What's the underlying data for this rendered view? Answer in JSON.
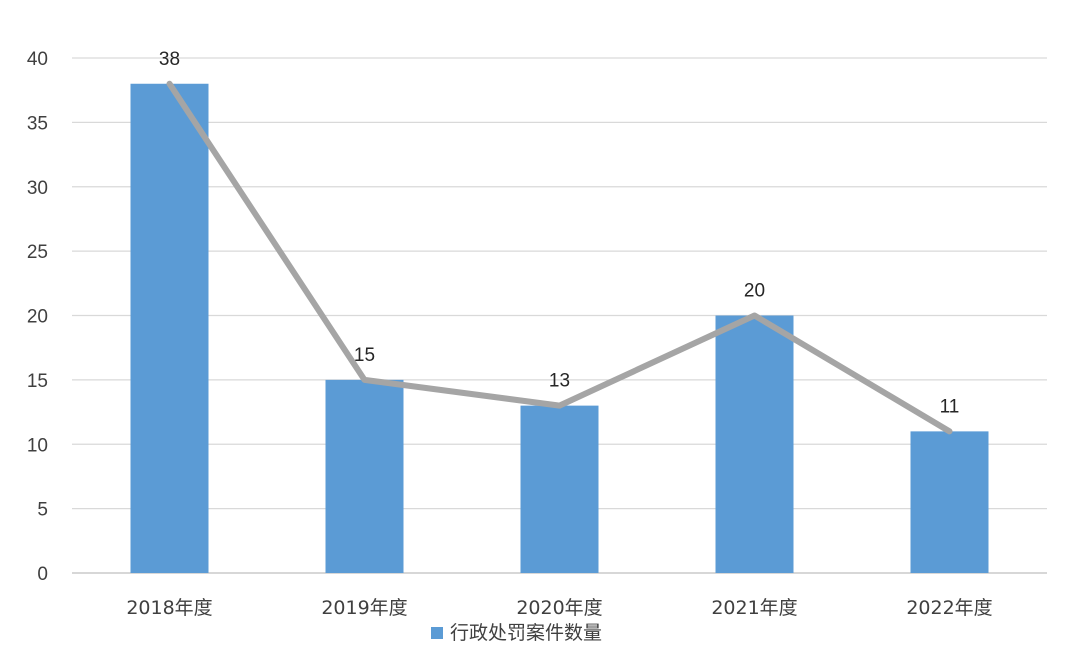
{
  "chart_data": {
    "type": "bar",
    "categories": [
      "2018年度",
      "2019年度",
      "2020年度",
      "2021年度",
      "2022年度"
    ],
    "series": [
      {
        "name": "行政处罚案件数量",
        "values": [
          38,
          15,
          13,
          20,
          11
        ],
        "color": "#5B9BD5",
        "overlay_line_color": "#A5A5A5"
      }
    ],
    "y_ticks": [
      0,
      5,
      10,
      15,
      20,
      25,
      30,
      35,
      40
    ],
    "ylim": [
      0,
      40
    ],
    "grid": true,
    "legend": "bottom",
    "data_labels": true,
    "overlay_line": true
  }
}
